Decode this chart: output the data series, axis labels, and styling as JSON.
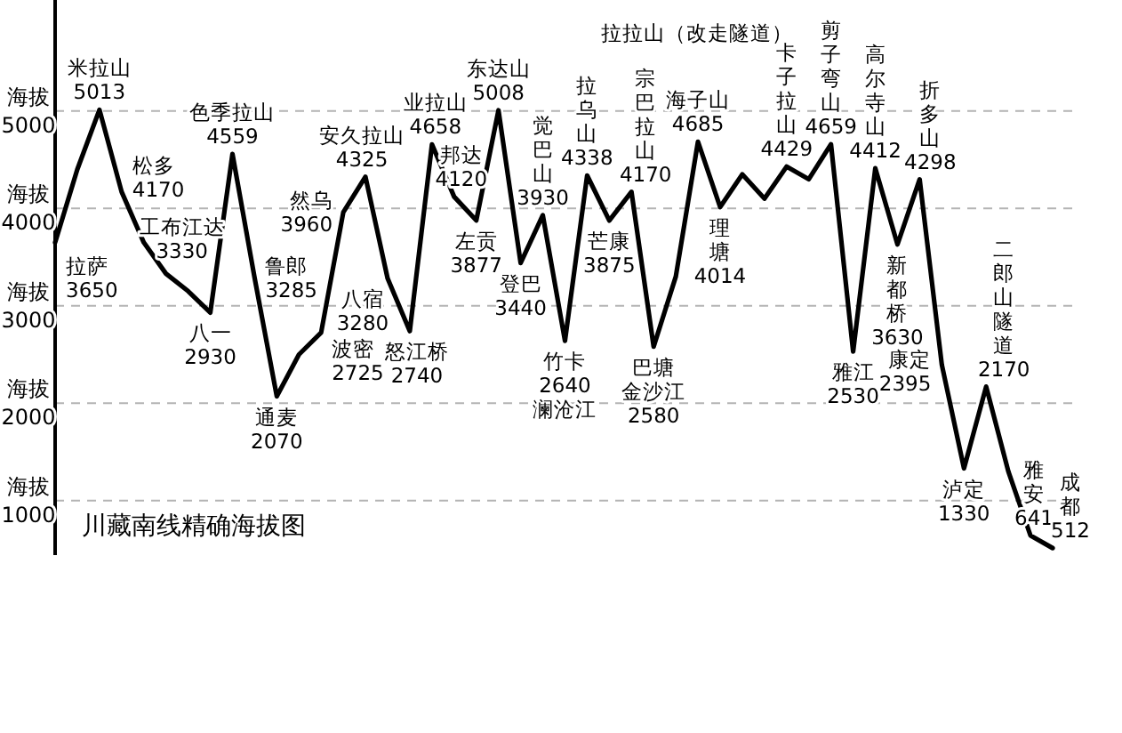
{
  "chart_data": {
    "type": "line",
    "title": "川藏南线精确海拔图",
    "categories": [
      null,
      null,
      null,
      null,
      null,
      null,
      null,
      null,
      null,
      null,
      null,
      null,
      null,
      null,
      null,
      null,
      null,
      null,
      null,
      null,
      null,
      null,
      null,
      null,
      null,
      null,
      null,
      null,
      null,
      null,
      null,
      null,
      null,
      null,
      null,
      null,
      null,
      null,
      null,
      null,
      null,
      null,
      null,
      null,
      null,
      null
    ],
    "series": [
      {
        "color": "#000000",
        "values": [
          3650,
          4400,
          5013,
          4170,
          3650,
          3330,
          3150,
          2930,
          4559,
          3285,
          2070,
          2500,
          2725,
          3960,
          4325,
          3280,
          2740,
          4658,
          4120,
          3877,
          5008,
          3440,
          3930,
          2640,
          4338,
          3875,
          4170,
          2580,
          3300,
          4685,
          4014,
          4350,
          4100,
          4429,
          4300,
          4659,
          2530,
          4412,
          3630,
          4298,
          2395,
          1330,
          2170,
          1300,
          641,
          512
        ]
      }
    ],
    "ylim": [
      440,
      6140
    ],
    "yticks": [
      1000,
      2000,
      3000,
      4000,
      5000
    ],
    "tick_labels": "y",
    "grid": "y",
    "marker": "none",
    "line_style": "solid",
    "annotations": [
      "拉萨3650",
      "米拉山5013",
      "松多4170",
      "工布江达3330",
      "八一2930",
      "色季拉山4559",
      "鲁郎3285",
      "通麦2070",
      "波密2725",
      "然乌3960",
      "安久拉山4325",
      "八宿3280",
      "怒江桥2740",
      "业拉山4658",
      "邦达4120",
      "左贡3877",
      "东达山5008",
      "登巴3440",
      "觉巴山3930",
      "竹卡2640澜沧江",
      "拉乌山4338",
      "芒康3875",
      "宗巴拉山4170",
      "巴塘金沙江2580",
      "拉拉山（改走隧道）",
      "海子山4685",
      "理塘4014",
      "卡子拉山4429",
      "剪子弯山4659",
      "高尔寺山4412",
      "新都桥3630",
      "折多山4298",
      "雅江2530",
      "康定2395",
      "二郎山隧道2170",
      "泸定1330",
      "雅安641",
      "成都512",
      "海拔",
      "海拔",
      "海拔",
      "海拔",
      "海拔"
    ]
  }
}
